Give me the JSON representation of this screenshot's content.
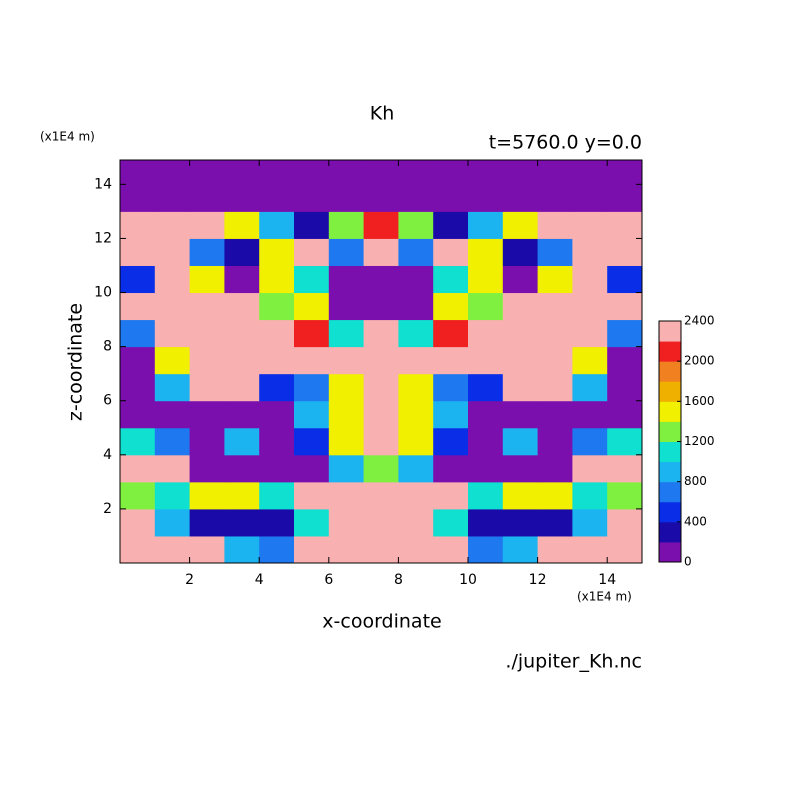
{
  "chart_data": {
    "type": "contour",
    "title": "Kh",
    "subtitle": "t=5760.0 y=0.0",
    "x_label": "x-coordinate",
    "y_label": "z-coordinate",
    "x_unit": "(x1E4 m)",
    "y_unit": "(x1E4 m)",
    "source": "./jupiter_Kh.nc",
    "xlim": [
      0,
      15
    ],
    "ylim": [
      0,
      14.9
    ],
    "xticks": [
      2,
      4,
      6,
      8,
      10,
      12,
      14
    ],
    "yticks": [
      2,
      4,
      6,
      8,
      10,
      12,
      14
    ],
    "x": [
      0.5,
      1.5,
      2.5,
      3.5,
      4.5,
      5.5,
      6.5,
      7.5,
      8.5,
      9.5,
      10.5,
      11.5,
      12.5,
      13.5,
      14.5
    ],
    "y": [
      0.5,
      1.5,
      2.5,
      3.5,
      4.5,
      5.5,
      6.5,
      7.5,
      8.5,
      9.5,
      10.5,
      11.5,
      12.5,
      13.5,
      14.45
    ],
    "z": [
      [
        2400,
        2400,
        2400,
        800,
        600,
        2200,
        2400,
        2400,
        2400,
        2200,
        600,
        800,
        2400,
        2400,
        2400
      ],
      [
        2400,
        800,
        300,
        300,
        300,
        1000,
        2400,
        2400,
        2400,
        1000,
        300,
        300,
        300,
        800,
        2400
      ],
      [
        1200,
        1000,
        1400,
        1500,
        1000,
        2400,
        2400,
        2400,
        2400,
        2400,
        1000,
        1500,
        1400,
        1000,
        1200
      ],
      [
        2400,
        2400,
        50,
        50,
        50,
        50,
        800,
        1200,
        800,
        50,
        50,
        50,
        50,
        2400,
        2400
      ],
      [
        1000,
        600,
        50,
        800,
        50,
        400,
        1500,
        2400,
        1500,
        400,
        50,
        800,
        50,
        600,
        1000
      ],
      [
        50,
        50,
        50,
        50,
        50,
        800,
        1500,
        2400,
        1500,
        800,
        50,
        50,
        50,
        50,
        50
      ],
      [
        50,
        800,
        2400,
        2400,
        400,
        600,
        1500,
        2400,
        1500,
        600,
        400,
        2400,
        2400,
        800,
        50
      ],
      [
        50,
        1500,
        2400,
        2400,
        2400,
        2400,
        2400,
        2400,
        2400,
        2400,
        2400,
        2400,
        2400,
        1500,
        50
      ],
      [
        600,
        2400,
        2400,
        2400,
        2400,
        2000,
        1000,
        2400,
        1000,
        2000,
        2400,
        2400,
        2400,
        2400,
        600
      ],
      [
        2400,
        2400,
        2400,
        2400,
        1200,
        1500,
        50,
        50,
        50,
        1500,
        1200,
        2400,
        2400,
        2400,
        2400
      ],
      [
        400,
        2400,
        1500,
        100,
        1500,
        1000,
        50,
        50,
        50,
        1000,
        1500,
        100,
        1500,
        2400,
        400
      ],
      [
        2400,
        2400,
        600,
        300,
        1500,
        2400,
        600,
        2400,
        600,
        2400,
        1500,
        300,
        600,
        2400,
        2400
      ],
      [
        2400,
        2400,
        2400,
        1500,
        800,
        300,
        1200,
        2000,
        1200,
        300,
        800,
        1500,
        2400,
        2400,
        2400
      ],
      [
        50,
        50,
        50,
        50,
        50,
        50,
        50,
        50,
        50,
        50,
        50,
        50,
        50,
        50,
        50
      ],
      [
        50,
        50,
        50,
        50,
        50,
        50,
        50,
        50,
        50,
        50,
        50,
        50,
        50,
        50,
        50
      ]
    ],
    "levels": [
      0,
      200,
      400,
      600,
      800,
      1000,
      1200,
      1400,
      1600,
      1800,
      2000,
      2200,
      2400
    ],
    "colors": [
      "#7b0fae",
      "#1a0aa8",
      "#0a2ee8",
      "#1e78f0",
      "#1cb4f0",
      "#10e0d0",
      "#80f040",
      "#f0f000",
      "#f0b000",
      "#f08020",
      "#f02020",
      "#f8b0b0"
    ],
    "colorbar_ticks": [
      0,
      400,
      800,
      1200,
      1600,
      2000,
      2400
    ]
  }
}
